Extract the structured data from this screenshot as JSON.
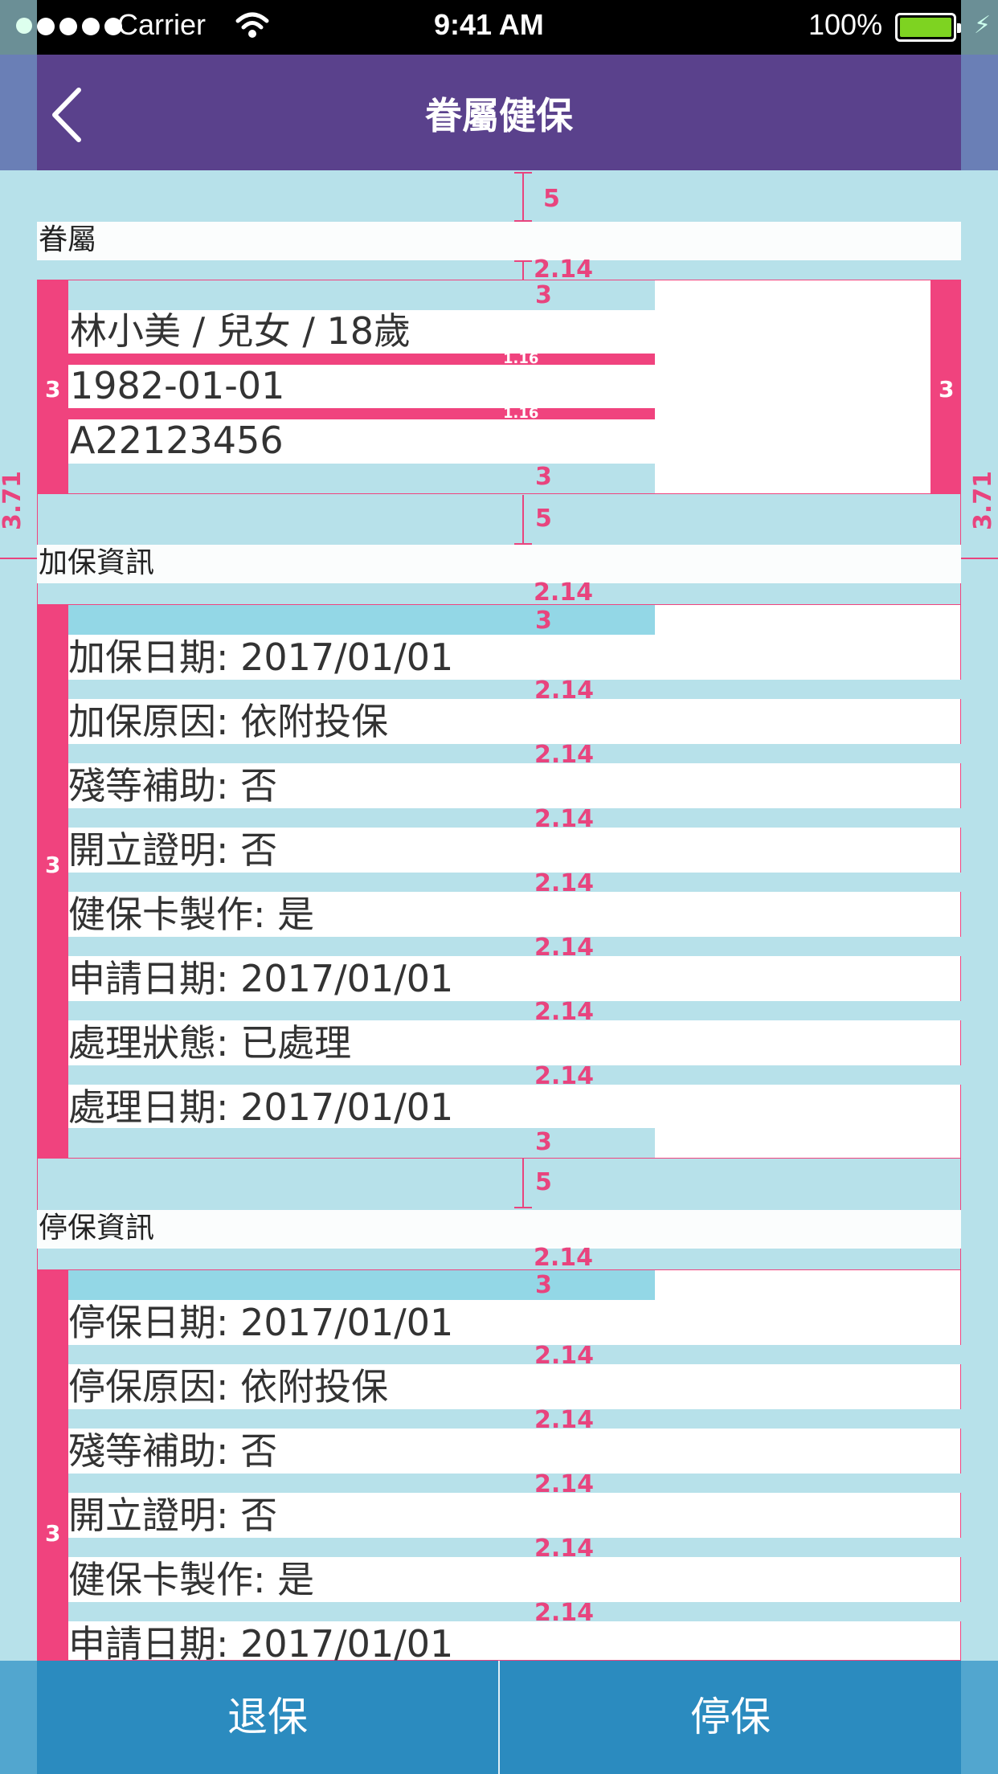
{
  "status_bar": {
    "carrier": "Carrier",
    "time": "9:41 AM",
    "battery": "100%"
  },
  "nav": {
    "title": "眷屬健保"
  },
  "dependents": {
    "label": "眷屬",
    "name_line": "林小美 / 兒女 / 18歲",
    "birthday": "1982-01-01",
    "id_number": "A22123456"
  },
  "enroll": {
    "label": "加保資訊",
    "rows": [
      "加保日期: 2017/01/01",
      "加保原因: 依附投保",
      "殘等補助: 否",
      "開立證明: 否",
      "健保卡製作: 是",
      "申請日期: 2017/01/01",
      "處理狀態: 已處理",
      "處理日期: 2017/01/01"
    ]
  },
  "suspend": {
    "label": "停保資訊",
    "rows": [
      "停保日期: 2017/01/01",
      "停保原因: 依附投保",
      "殘等補助: 否",
      "開立證明: 否",
      "健保卡製作: 是",
      "申請日期: 2017/01/01"
    ]
  },
  "buttons": {
    "withdraw": "退保",
    "suspend": "停保"
  },
  "annotations": {
    "m5": "5",
    "m3": "3",
    "m214": "2.14",
    "m116": "1.16",
    "m371": "3.71"
  },
  "colors": {
    "nav": "#5a418c",
    "accent": "#f0437e",
    "button": "#2b8bbf",
    "background": "#b7e1ea"
  }
}
